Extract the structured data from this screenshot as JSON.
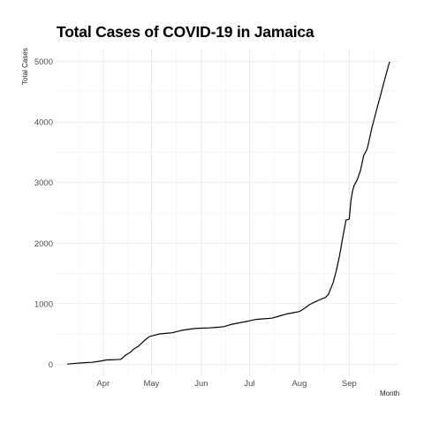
{
  "chart_data": {
    "type": "line",
    "title": "Total Cases of COVID-19 in Jamaica",
    "xlabel": "Month",
    "ylabel": "Total Cases",
    "x_ticks": [
      "Apr",
      "May",
      "Jun",
      "Jul",
      "Aug",
      "Sep"
    ],
    "x_tick_dates": [
      "2020-04-01",
      "2020-05-01",
      "2020-06-01",
      "2020-07-01",
      "2020-08-01",
      "2020-09-01"
    ],
    "xlim": [
      "2020-03-03",
      "2020-10-01"
    ],
    "y_ticks": [
      0,
      1000,
      2000,
      3000,
      4000,
      5000
    ],
    "ylim": [
      -200,
      5200
    ],
    "grid": true,
    "line_color": "#000000",
    "series": [
      {
        "x": [
          "2020-03-10",
          "2020-03-15",
          "2020-03-20",
          "2020-03-25",
          "2020-03-30",
          "2020-04-03",
          "2020-04-08",
          "2020-04-12",
          "2020-04-15",
          "2020-04-18",
          "2020-04-20",
          "2020-04-23",
          "2020-04-27",
          "2020-04-30",
          "2020-05-03",
          "2020-05-06",
          "2020-05-10",
          "2020-05-14",
          "2020-05-20",
          "2020-05-25",
          "2020-05-28",
          "2020-06-01",
          "2020-06-06",
          "2020-06-11",
          "2020-06-15",
          "2020-06-20",
          "2020-06-26",
          "2020-06-30",
          "2020-07-05",
          "2020-07-10",
          "2020-07-15",
          "2020-07-20",
          "2020-07-24",
          "2020-07-28",
          "2020-08-01",
          "2020-08-04",
          "2020-08-07",
          "2020-08-10",
          "2020-08-14",
          "2020-08-17",
          "2020-08-19",
          "2020-08-22",
          "2020-08-24",
          "2020-08-26",
          "2020-08-28",
          "2020-08-30",
          "2020-09-01",
          "2020-09-02",
          "2020-09-03",
          "2020-09-04",
          "2020-09-06",
          "2020-09-08",
          "2020-09-10",
          "2020-09-12",
          "2020-09-13",
          "2020-09-15",
          "2020-09-17",
          "2020-09-18",
          "2020-09-20",
          "2020-09-22",
          "2020-09-24",
          "2020-09-26"
        ],
        "y": [
          2,
          15,
          25,
          30,
          50,
          70,
          75,
          80,
          150,
          200,
          250,
          300,
          400,
          460,
          480,
          500,
          510,
          520,
          560,
          580,
          590,
          595,
          600,
          610,
          620,
          660,
          690,
          710,
          740,
          750,
          760,
          800,
          830,
          850,
          870,
          920,
          980,
          1020,
          1070,
          1100,
          1150,
          1350,
          1550,
          1800,
          2100,
          2380,
          2400,
          2700,
          2850,
          2950,
          3050,
          3200,
          3450,
          3550,
          3650,
          3900,
          4100,
          4200,
          4400,
          4600,
          4800,
          4990
        ]
      }
    ]
  }
}
